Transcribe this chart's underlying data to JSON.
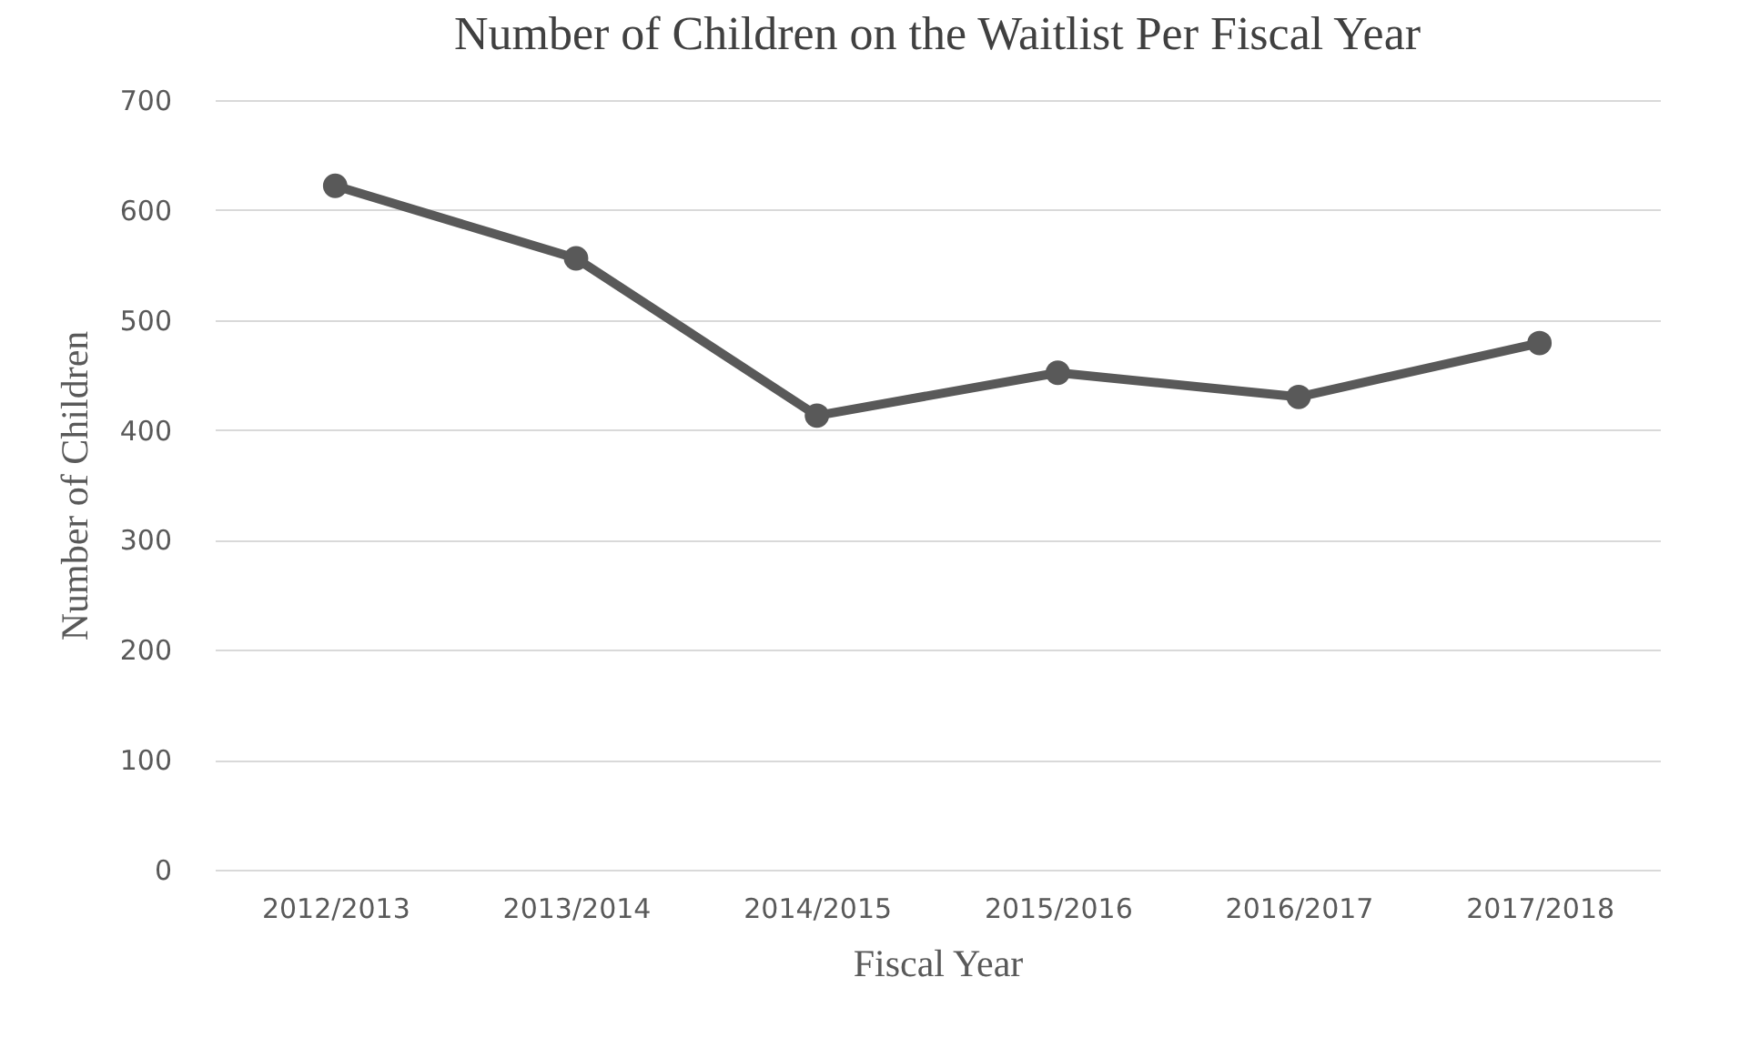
{
  "chart_data": {
    "type": "line",
    "title": "Number of Children on the Waitlist Per Fiscal Year",
    "xlabel": "Fiscal Year",
    "ylabel": "Number of Children",
    "categories": [
      "2012/2013",
      "2013/2014",
      "2014/2015",
      "2015/2016",
      "2016/2017",
      "2017/2018"
    ],
    "series": [
      {
        "color": "#595959",
        "values": [
          622,
          556,
          413,
          452,
          430,
          479
        ]
      }
    ],
    "ylim": [
      0,
      700
    ],
    "yticks": [
      0,
      100,
      200,
      300,
      400,
      500,
      600,
      700
    ],
    "grid": "y",
    "marker": "circle",
    "line_style": "solid"
  }
}
